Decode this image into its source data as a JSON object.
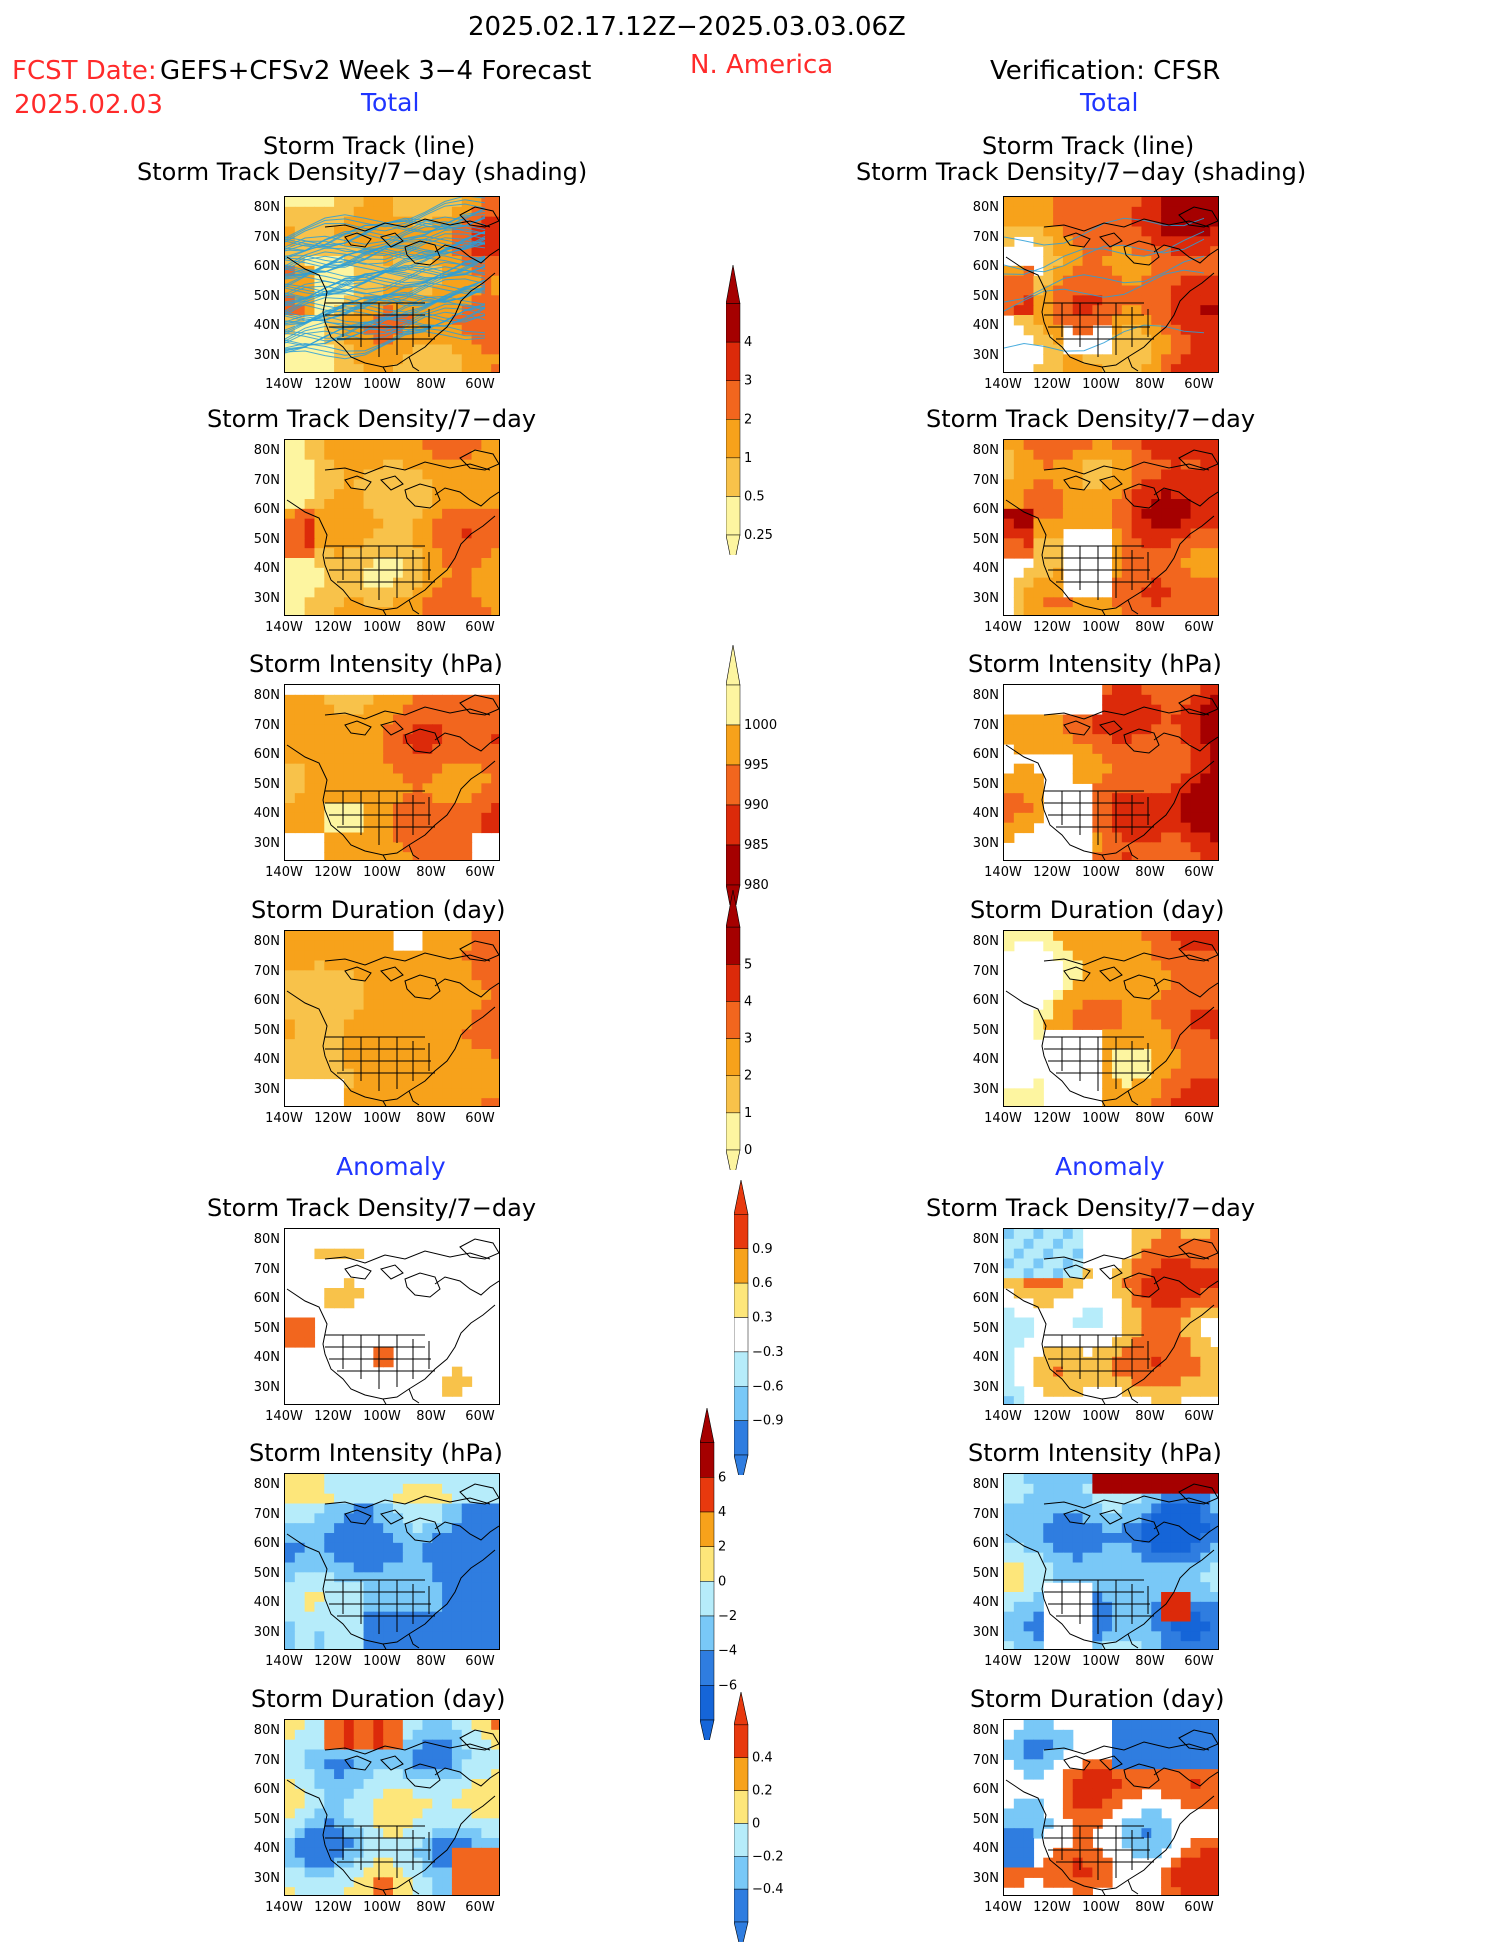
{
  "header": {
    "period": "2025.02.17.12Z−2025.03.03.06Z",
    "fcst_date_label": "FCST Date:",
    "fcst_date": "2025.02.03",
    "model": "GEFS+CFSv2 Week 3−4 Forecast",
    "region": "N. America",
    "verification": "Verification: CFSR"
  },
  "sections": {
    "total": "Total",
    "anomaly": "Anomaly"
  },
  "panel_titles": {
    "track_line": "Storm Track (line)",
    "track_shading": "Storm Track Density/7−day (shading)",
    "density": "Storm Track Density/7−day",
    "intensity": "Storm Intensity (hPa)",
    "duration": "Storm Duration (day)"
  },
  "axes": {
    "lat_ticks": [
      "80N",
      "70N",
      "60N",
      "50N",
      "40N",
      "30N"
    ],
    "lon_ticks": [
      "140W",
      "120W",
      "100W",
      "80W",
      "60W"
    ]
  },
  "colorbars": [
    {
      "id": "density-total",
      "labels": [
        "4",
        "3",
        "2",
        "1",
        "0.5",
        "0.25"
      ],
      "colors": [
        "#a50000",
        "#dc2a0a",
        "#f2661e",
        "#f7a21b",
        "#f8c24a",
        "#fdf5a0"
      ]
    },
    {
      "id": "intensity-total",
      "labels": [
        "1000",
        "995",
        "990",
        "985",
        "980"
      ],
      "colors": [
        "#fdf5a0",
        "#f7a21b",
        "#f2661e",
        "#dc2a0a",
        "#a50000"
      ]
    },
    {
      "id": "duration-total",
      "labels": [
        "5",
        "4",
        "3",
        "2",
        "1",
        "0"
      ],
      "colors": [
        "#a50000",
        "#dc2a0a",
        "#f2661e",
        "#f7a21b",
        "#f8c24a",
        "#fdf5a0"
      ]
    },
    {
      "id": "density-anom",
      "labels": [
        "0.9",
        "0.6",
        "0.3",
        "−0.3",
        "−0.6",
        "−0.9"
      ],
      "colors": [
        "#e8390e",
        "#f7a21b",
        "#fde67a",
        "#ffffff",
        "#b6ecfa",
        "#79c8f7",
        "#2f7de0"
      ]
    },
    {
      "id": "intensity-anom",
      "labels": [
        "6",
        "4",
        "2",
        "0",
        "−2",
        "−4",
        "−6"
      ],
      "colors": [
        "#a50000",
        "#e8390e",
        "#f7a21b",
        "#fde67a",
        "#b6ecfa",
        "#79c8f7",
        "#2f7de0",
        "#1565d8"
      ]
    },
    {
      "id": "duration-anom",
      "labels": [
        "0.4",
        "0.2",
        "0",
        "−0.2",
        "−0.4"
      ],
      "colors": [
        "#e8390e",
        "#f7a21b",
        "#fde67a",
        "#b6ecfa",
        "#79c8f7",
        "#2f7de0"
      ]
    }
  ],
  "chart_data": [
    {
      "type": "heatmap",
      "id": "fc-track",
      "title": "Storm Track (line)",
      "subtitle": "Storm Track Density/7−day (shading)",
      "dominant": "light orange with dense blue track lines"
    },
    {
      "type": "heatmap",
      "id": "ob-track",
      "title": "Storm Track (line)",
      "subtitle": "Storm Track Density/7−day (shading)",
      "dominant": "orange, maxima over NE Canada and N Pacific"
    },
    {
      "type": "heatmap",
      "id": "fc-density",
      "title": "Storm Track Density/7−day"
    },
    {
      "type": "heatmap",
      "id": "ob-density",
      "title": "Storm Track Density/7−day"
    },
    {
      "type": "heatmap",
      "id": "fc-intensity",
      "title": "Storm Intensity (hPa)"
    },
    {
      "type": "heatmap",
      "id": "ob-intensity",
      "title": "Storm Intensity (hPa)"
    },
    {
      "type": "heatmap",
      "id": "fc-duration",
      "title": "Storm Duration (day)"
    },
    {
      "type": "heatmap",
      "id": "ob-duration",
      "title": "Storm Duration (day)"
    },
    {
      "type": "heatmap",
      "id": "fc-density-anom",
      "title": "Storm Track Density/7−day"
    },
    {
      "type": "heatmap",
      "id": "ob-density-anom",
      "title": "Storm Track Density/7−day"
    },
    {
      "type": "heatmap",
      "id": "fc-intensity-anom",
      "title": "Storm Intensity (hPa)"
    },
    {
      "type": "heatmap",
      "id": "ob-intensity-anom",
      "title": "Storm Intensity (hPa)"
    },
    {
      "type": "heatmap",
      "id": "fc-duration-anom",
      "title": "Storm Duration (day)"
    },
    {
      "type": "heatmap",
      "id": "ob-duration-anom",
      "title": "Storm Duration (day)"
    }
  ]
}
